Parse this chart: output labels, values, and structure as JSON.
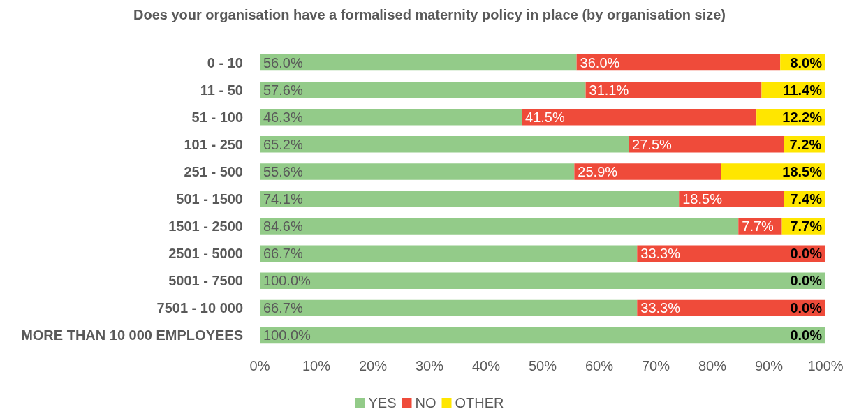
{
  "chart_data": {
    "type": "bar",
    "orientation": "horizontal",
    "stacked": true,
    "title": "Does your organisation have a formalised maternity policy in place (by organisation size)",
    "categories": [
      "0 - 10",
      "11 - 50",
      "51 - 100",
      "101 - 250",
      "251 - 500",
      "501 - 1500",
      "1501 - 2500",
      "2501 - 5000",
      "5001 - 7500",
      "7501 - 10 000",
      "MORE THAN 10 000 EMPLOYEES"
    ],
    "series": [
      {
        "name": "YES",
        "color": "#93cb89",
        "values": [
          56.0,
          57.6,
          46.3,
          65.2,
          55.6,
          74.1,
          84.6,
          66.7,
          100.0,
          66.7,
          100.0
        ],
        "value_labels": [
          "56.0%",
          "57.6%",
          "46.3%",
          "65.2%",
          "55.6%",
          "74.1%",
          "84.6%",
          "66.7%",
          "100.0%",
          "66.7%",
          "100.0%"
        ]
      },
      {
        "name": "NO",
        "color": "#ef4b3a",
        "values": [
          36.0,
          31.1,
          41.5,
          27.5,
          25.9,
          18.5,
          7.7,
          33.3,
          0,
          33.3,
          0
        ],
        "value_labels": [
          "36.0%",
          "31.1%",
          "41.5%",
          "27.5%",
          "25.9%",
          "18.5%",
          "7.7%",
          "33.3%",
          null,
          "33.3%",
          null
        ]
      },
      {
        "name": "OTHER",
        "color": "#ffe600",
        "values": [
          8.0,
          11.4,
          12.2,
          7.2,
          18.5,
          7.4,
          7.7,
          0.0,
          0.0,
          0.0,
          0.0
        ],
        "value_labels": [
          "8.0%",
          "11.4%",
          "12.2%",
          "7.2%",
          "18.5%",
          "7.4%",
          "7.7%",
          "0.0%",
          "0.0%",
          "0.0%",
          "0.0%"
        ]
      }
    ],
    "xlim": [
      0,
      100
    ],
    "xticks": [
      {
        "value": 0,
        "label": "0%"
      },
      {
        "value": 10,
        "label": "10%"
      },
      {
        "value": 20,
        "label": "20%"
      },
      {
        "value": 30,
        "label": "30%"
      },
      {
        "value": 40,
        "label": "40%"
      },
      {
        "value": 50,
        "label": "50%"
      },
      {
        "value": 60,
        "label": "60%"
      },
      {
        "value": 70,
        "label": "70%"
      },
      {
        "value": 80,
        "label": "80%"
      },
      {
        "value": 90,
        "label": "90%"
      },
      {
        "value": 100,
        "label": "100%"
      }
    ],
    "legend": "bottom"
  }
}
